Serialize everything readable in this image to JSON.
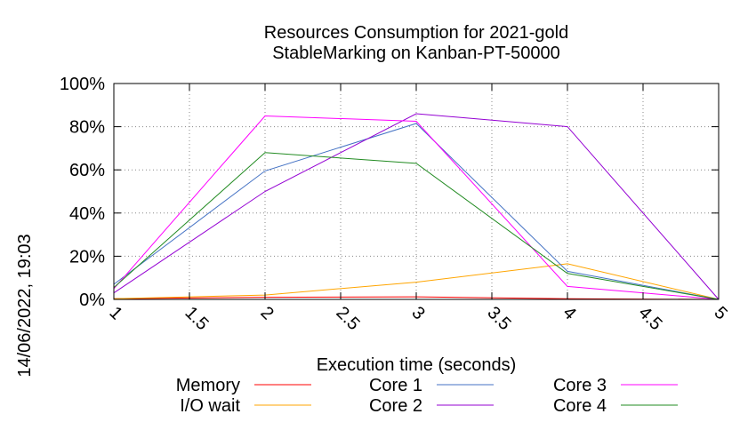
{
  "chart_data": {
    "type": "line",
    "title": "Resources Consumption for 2021-gold",
    "subtitle": "StableMarking on Kanban-PT-50000",
    "xlabel": "Execution time (seconds)",
    "ylabel": "",
    "side_label": "14/06/2022, 19:03",
    "xlim": [
      1,
      5
    ],
    "ylim": [
      0,
      100
    ],
    "x_ticks": [
      "1",
      "1.5",
      "2",
      "2.5",
      "3",
      "3.5",
      "4",
      "4.5",
      "5"
    ],
    "y_ticks": [
      "0%",
      "20%",
      "40%",
      "60%",
      "80%",
      "100%"
    ],
    "grid": true,
    "legend_position": "bottom",
    "series": [
      {
        "name": "Memory",
        "color": "#ff0000",
        "x": [
          1,
          2,
          3,
          4,
          5
        ],
        "y": [
          0.3,
          1,
          1.2,
          0.3,
          0
        ]
      },
      {
        "name": "I/O wait",
        "color": "#ffa500",
        "x": [
          1,
          2,
          3,
          4,
          5
        ],
        "y": [
          0.3,
          2,
          8,
          16.5,
          0
        ]
      },
      {
        "name": "Core 1",
        "color": "#4472c4",
        "x": [
          1,
          2,
          3,
          4,
          5
        ],
        "y": [
          7,
          59.5,
          81.5,
          13,
          0
        ]
      },
      {
        "name": "Core 2",
        "color": "#9400d3",
        "x": [
          1,
          2,
          3,
          4,
          5
        ],
        "y": [
          3,
          50,
          86,
          80,
          0
        ]
      },
      {
        "name": "Core 3",
        "color": "#ff00ff",
        "x": [
          1,
          2,
          3,
          4,
          5
        ],
        "y": [
          5,
          85,
          82.5,
          6,
          0
        ]
      },
      {
        "name": "Core 4",
        "color": "#228b22",
        "x": [
          1,
          2,
          3,
          4,
          5
        ],
        "y": [
          5.5,
          68,
          63,
          12,
          0
        ]
      }
    ]
  }
}
